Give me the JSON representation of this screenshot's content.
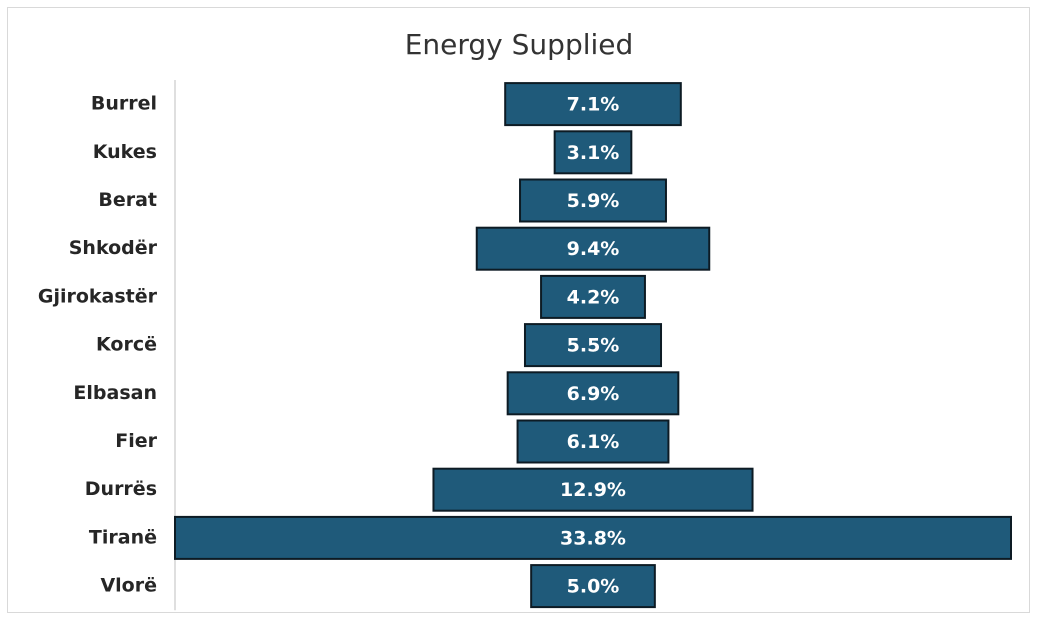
{
  "chart_data": {
    "type": "bar",
    "orientation": "horizontal",
    "style": "centered funnel",
    "title": "Energy Supplied",
    "categories": [
      "Burrel",
      "Kukes",
      "Berat",
      "Shkodër",
      "Gjirokastër",
      "Korcë",
      "Elbasan",
      "Fier",
      "Durrës",
      "Tiranë",
      "Vlorë"
    ],
    "values": [
      7.1,
      3.1,
      5.9,
      9.4,
      4.2,
      5.5,
      6.9,
      6.1,
      12.9,
      33.8,
      5.0
    ],
    "data_labels": [
      "7.1%",
      "3.1%",
      "5.9%",
      "9.4%",
      "4.2%",
      "5.5%",
      "6.9%",
      "6.1%",
      "12.9%",
      "33.8%",
      "5.0%"
    ],
    "unit": "%",
    "grid": false,
    "legend": "none",
    "bar_color": "#1f5a7a",
    "bar_outline_color": "#0d1b24"
  }
}
